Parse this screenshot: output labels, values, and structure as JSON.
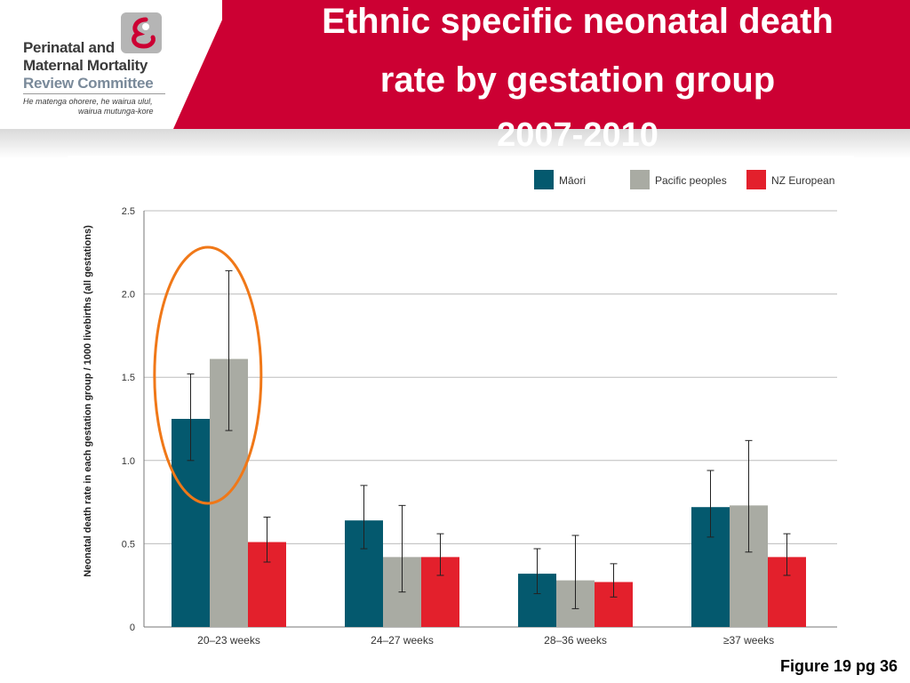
{
  "header": {
    "title_lines": [
      "Ethnic specific neonatal death",
      "rate by gestation group",
      "2007-2010"
    ],
    "logo": {
      "line1": "Perinatal and",
      "line2": "Maternal Mortality",
      "line3": "Review Committee",
      "tagline1": "He matenga ohorere, he wairua ulul,",
      "tagline2": "wairua mutunga-kore"
    },
    "colors": {
      "band": "#cc0033",
      "logo_text": "#3a3a3a"
    }
  },
  "footer_note": "Figure 19 pg 36",
  "chart_data": {
    "type": "bar",
    "title": "",
    "ylabel": "Neonatal death rate in each gestation group / 1000 livebirths (all gestations)",
    "xlabel": "",
    "ylim": [
      0,
      2.5
    ],
    "yticks": [
      "0",
      "0.5",
      "1.0",
      "1.5",
      "2.0",
      "2.5"
    ],
    "ytick_values": [
      0,
      0.5,
      1.0,
      1.5,
      2.0,
      2.5
    ],
    "grid": true,
    "legend_position": "top-right",
    "categories": [
      "20–23 weeks",
      "24–27 weeks",
      "28–36 weeks",
      "≥37 weeks"
    ],
    "series": [
      {
        "name": "Māori",
        "color": "#04596e",
        "values": [
          1.25,
          0.64,
          0.32,
          0.72
        ],
        "err_low": [
          1.0,
          0.47,
          0.2,
          0.54
        ],
        "err_high": [
          1.52,
          0.85,
          0.47,
          0.94
        ]
      },
      {
        "name": "Pacific peoples",
        "color": "#a9aba3",
        "values": [
          1.61,
          0.42,
          0.28,
          0.73
        ],
        "err_low": [
          1.18,
          0.21,
          0.11,
          0.45
        ],
        "err_high": [
          2.14,
          0.73,
          0.55,
          1.12
        ]
      },
      {
        "name": "NZ European",
        "color": "#e3202c",
        "values": [
          0.51,
          0.42,
          0.27,
          0.42
        ],
        "err_low": [
          0.39,
          0.31,
          0.18,
          0.31
        ],
        "err_high": [
          0.66,
          0.56,
          0.38,
          0.56
        ]
      }
    ],
    "highlight": {
      "shape": "ellipse",
      "category": "20–23 weeks",
      "color": "#f07818"
    }
  }
}
